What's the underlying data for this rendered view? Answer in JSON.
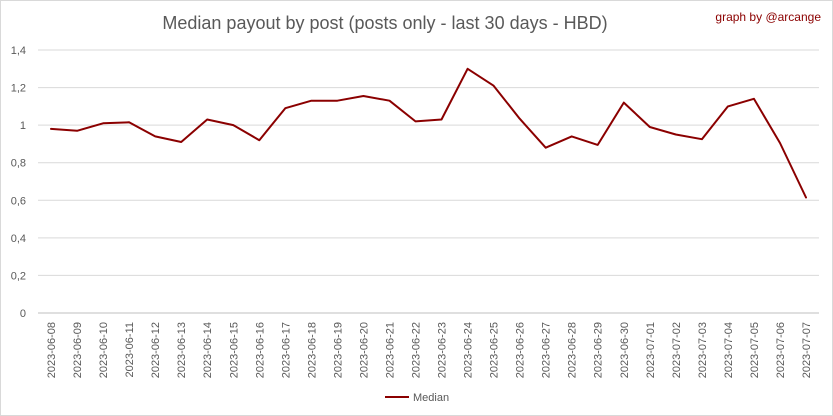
{
  "chart_data": {
    "type": "line",
    "title": "Median payout by post (posts only - last 30 days - HBD)",
    "credit": "graph by @arcange",
    "xlabel": "",
    "ylabel": "",
    "ylim": [
      0,
      1.4
    ],
    "y_ticks": [
      "0",
      "0,2",
      "0,4",
      "0,6",
      "0,8",
      "1",
      "1,2",
      "1,4"
    ],
    "y_tick_values": [
      0,
      0.2,
      0.4,
      0.6,
      0.8,
      1.0,
      1.2,
      1.4
    ],
    "grid": true,
    "legend_position": "bottom",
    "categories": [
      "2023-06-08",
      "2023-06-09",
      "2023-06-10",
      "2023-06-11",
      "2023-06-12",
      "2023-06-13",
      "2023-06-14",
      "2023-06-15",
      "2023-06-16",
      "2023-06-17",
      "2023-06-18",
      "2023-06-19",
      "2023-06-20",
      "2023-06-21",
      "2023-06-22",
      "2023-06-23",
      "2023-06-24",
      "2023-06-25",
      "2023-06-26",
      "2023-06-27",
      "2023-06-28",
      "2023-06-29",
      "2023-06-30",
      "2023-07-01",
      "2023-07-02",
      "2023-07-03",
      "2023-07-04",
      "2023-07-05",
      "2023-07-06",
      "2023-07-07"
    ],
    "series": [
      {
        "name": "Median",
        "color": "#8b0000",
        "values": [
          0.98,
          0.97,
          1.01,
          1.015,
          0.94,
          0.91,
          1.03,
          1.0,
          0.92,
          1.09,
          1.13,
          1.13,
          1.155,
          1.13,
          1.02,
          1.03,
          1.3,
          1.21,
          1.035,
          0.88,
          0.94,
          0.895,
          1.12,
          0.99,
          0.95,
          0.925,
          1.1,
          1.14,
          0.905,
          0.615
        ]
      }
    ]
  }
}
